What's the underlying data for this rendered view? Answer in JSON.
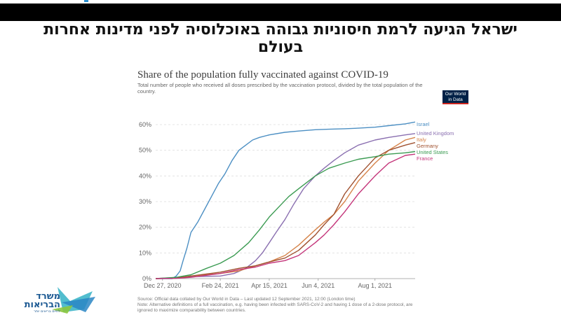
{
  "slide": {
    "title": "ישראל הגיעה לרמת חיסוניות גבוהה באוכלוסיה לפני מדינות אחרות בעולם"
  },
  "logo": {
    "owid_line1": "Our World",
    "owid_line2": "in Data",
    "ministry_line1": "משרד",
    "ministry_line2": "הבריאות",
    "ministry_tagline": "לחיים בריאים יותר"
  },
  "chart_data": {
    "type": "line",
    "title": "Share of the population fully vaccinated against COVID-19",
    "subtitle": "Total number of people who received all doses prescribed by the vaccination protocol, divided by the total population of the country.",
    "xlabel": "",
    "ylabel": "",
    "x_ticks": [
      "Dec 27, 2020",
      "Feb 24, 2021",
      "Apr 15, 2021",
      "Jun 4, 2021",
      "Aug 1, 2021"
    ],
    "x_range": [
      "2020-12-20",
      "2021-09-11"
    ],
    "y_ticks": [
      "0%",
      "10%",
      "20%",
      "30%",
      "40%",
      "50%",
      "60%"
    ],
    "ylim": [
      0,
      60
    ],
    "grid": true,
    "series": [
      {
        "name": "Israel",
        "color": "#4c8fc3",
        "points": [
          [
            "2020-12-20",
            0
          ],
          [
            "2021-01-06",
            0
          ],
          [
            "2021-01-10",
            1
          ],
          [
            "2021-01-14",
            3
          ],
          [
            "2021-01-17",
            7
          ],
          [
            "2021-01-21",
            12
          ],
          [
            "2021-01-25",
            18
          ],
          [
            "2021-02-01",
            22
          ],
          [
            "2021-02-08",
            27
          ],
          [
            "2021-02-15",
            32
          ],
          [
            "2021-02-22",
            37
          ],
          [
            "2021-03-01",
            41
          ],
          [
            "2021-03-08",
            46
          ],
          [
            "2021-03-15",
            50
          ],
          [
            "2021-03-22",
            52
          ],
          [
            "2021-03-29",
            54
          ],
          [
            "2021-04-05",
            55
          ],
          [
            "2021-04-15",
            56
          ],
          [
            "2021-05-01",
            57
          ],
          [
            "2021-05-15",
            57.5
          ],
          [
            "2021-06-01",
            58
          ],
          [
            "2021-06-15",
            58.2
          ],
          [
            "2021-07-01",
            58.4
          ],
          [
            "2021-07-15",
            58.6
          ],
          [
            "2021-08-01",
            59
          ],
          [
            "2021-08-15",
            59.6
          ],
          [
            "2021-09-01",
            60.3
          ],
          [
            "2021-09-11",
            61
          ]
        ]
      },
      {
        "name": "United Kingdom",
        "color": "#8a6fb0",
        "points": [
          [
            "2020-12-20",
            0
          ],
          [
            "2021-01-10",
            0.4
          ],
          [
            "2021-02-01",
            0.8
          ],
          [
            "2021-02-24",
            1
          ],
          [
            "2021-03-10",
            2
          ],
          [
            "2021-03-22",
            4
          ],
          [
            "2021-04-01",
            7
          ],
          [
            "2021-04-08",
            10
          ],
          [
            "2021-04-15",
            14
          ],
          [
            "2021-04-22",
            18
          ],
          [
            "2021-05-01",
            23
          ],
          [
            "2021-05-10",
            29
          ],
          [
            "2021-05-20",
            35
          ],
          [
            "2021-06-01",
            40
          ],
          [
            "2021-06-10",
            43
          ],
          [
            "2021-06-20",
            46
          ],
          [
            "2021-07-01",
            49
          ],
          [
            "2021-07-15",
            52
          ],
          [
            "2021-08-01",
            54
          ],
          [
            "2021-08-15",
            55
          ],
          [
            "2021-09-01",
            56
          ],
          [
            "2021-09-11",
            56.5
          ]
        ]
      },
      {
        "name": "Italy",
        "color": "#d6844a",
        "points": [
          [
            "2020-12-20",
            0
          ],
          [
            "2021-01-10",
            0.2
          ],
          [
            "2021-01-25",
            1
          ],
          [
            "2021-02-24",
            2
          ],
          [
            "2021-03-15",
            3
          ],
          [
            "2021-04-01",
            5
          ],
          [
            "2021-04-15",
            6.5
          ],
          [
            "2021-05-01",
            9
          ],
          [
            "2021-05-15",
            13
          ],
          [
            "2021-06-01",
            19
          ],
          [
            "2021-06-10",
            22
          ],
          [
            "2021-06-20",
            25
          ],
          [
            "2021-07-01",
            30
          ],
          [
            "2021-07-15",
            38
          ],
          [
            "2021-08-01",
            45
          ],
          [
            "2021-08-15",
            50
          ],
          [
            "2021-09-01",
            54
          ],
          [
            "2021-09-11",
            55
          ]
        ]
      },
      {
        "name": "Germany",
        "color": "#a0512f",
        "points": [
          [
            "2020-12-20",
            0
          ],
          [
            "2021-01-10",
            0.2
          ],
          [
            "2021-01-25",
            1
          ],
          [
            "2021-02-24",
            2.5
          ],
          [
            "2021-03-15",
            4
          ],
          [
            "2021-04-01",
            5
          ],
          [
            "2021-04-15",
            6.5
          ],
          [
            "2021-05-01",
            8
          ],
          [
            "2021-05-15",
            11
          ],
          [
            "2021-06-01",
            17
          ],
          [
            "2021-06-10",
            21
          ],
          [
            "2021-06-20",
            25
          ],
          [
            "2021-07-01",
            33
          ],
          [
            "2021-07-15",
            40
          ],
          [
            "2021-08-01",
            47
          ],
          [
            "2021-08-15",
            50
          ],
          [
            "2021-09-01",
            52
          ],
          [
            "2021-09-11",
            53
          ]
        ]
      },
      {
        "name": "United States",
        "color": "#3b9b52",
        "points": [
          [
            "2020-12-20",
            0
          ],
          [
            "2021-01-10",
            0.5
          ],
          [
            "2021-01-25",
            1.5
          ],
          [
            "2021-02-10",
            4
          ],
          [
            "2021-02-24",
            6
          ],
          [
            "2021-03-10",
            9
          ],
          [
            "2021-03-25",
            14
          ],
          [
            "2021-04-05",
            19
          ],
          [
            "2021-04-15",
            24
          ],
          [
            "2021-04-25",
            28
          ],
          [
            "2021-05-05",
            32
          ],
          [
            "2021-05-15",
            35
          ],
          [
            "2021-06-01",
            40
          ],
          [
            "2021-06-15",
            43
          ],
          [
            "2021-07-01",
            45
          ],
          [
            "2021-07-15",
            46.5
          ],
          [
            "2021-08-01",
            47.5
          ],
          [
            "2021-08-15",
            48.5
          ],
          [
            "2021-09-01",
            49
          ],
          [
            "2021-09-11",
            49.5
          ]
        ]
      },
      {
        "name": "France",
        "color": "#c4357a",
        "points": [
          [
            "2020-12-20",
            0
          ],
          [
            "2021-01-10",
            0.1
          ],
          [
            "2021-01-25",
            0.5
          ],
          [
            "2021-02-24",
            2
          ],
          [
            "2021-03-15",
            3.5
          ],
          [
            "2021-04-01",
            4.5
          ],
          [
            "2021-04-15",
            6
          ],
          [
            "2021-05-01",
            7
          ],
          [
            "2021-05-15",
            9
          ],
          [
            "2021-06-01",
            14
          ],
          [
            "2021-06-10",
            17
          ],
          [
            "2021-06-20",
            21
          ],
          [
            "2021-07-01",
            26
          ],
          [
            "2021-07-15",
            33
          ],
          [
            "2021-08-01",
            40
          ],
          [
            "2021-08-15",
            45
          ],
          [
            "2021-09-01",
            48
          ],
          [
            "2021-09-11",
            48.5
          ]
        ]
      }
    ]
  },
  "footnote": {
    "line1": "Source: Official data collated by Our World in Data – Last updated 12 September 2021, 12:00 (London time)",
    "line2": "Note: Alternative definitions of a full vaccination, e.g. having been infected with SARS-CoV-2 and having 1 dose of a 2-dose protocol, are",
    "line3": "ignored to maximize comparability between countries."
  }
}
